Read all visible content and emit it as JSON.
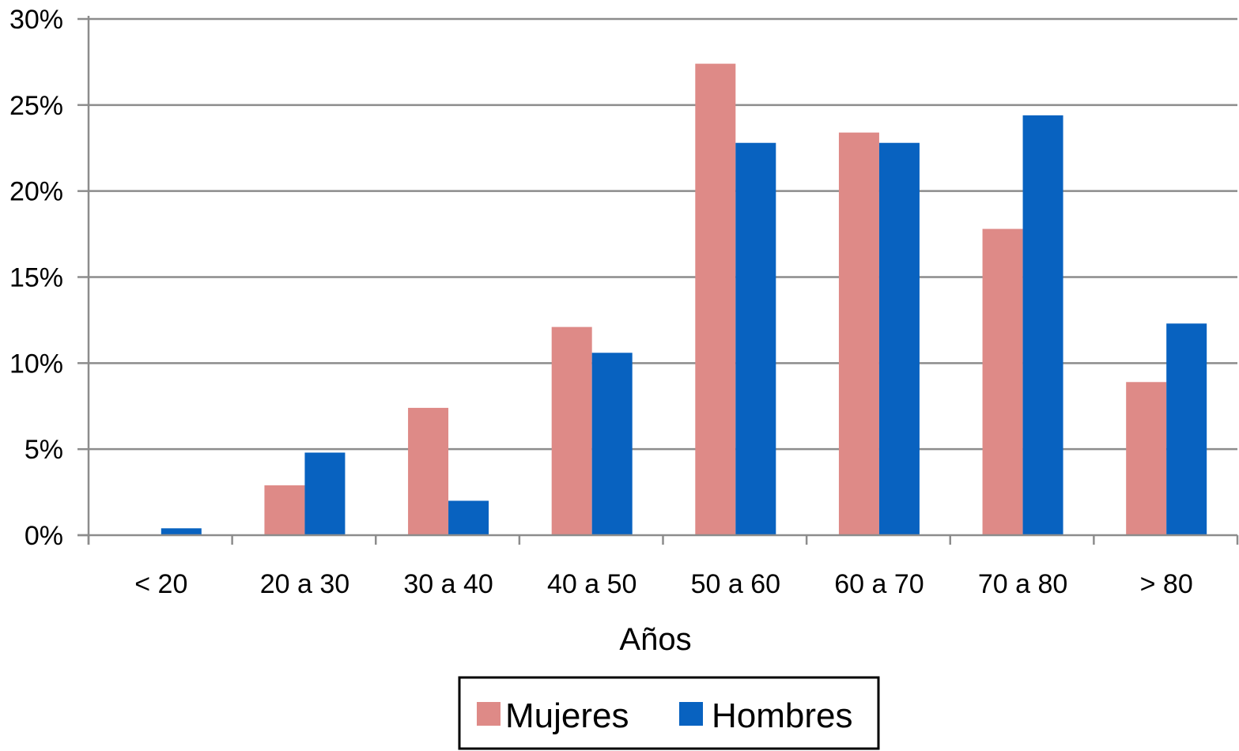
{
  "chart_data": {
    "type": "bar",
    "categories": [
      "< 20",
      "20 a 30",
      "30 a 40",
      "40 a 50",
      "50 a 60",
      "60 a 70",
      "70 a 80",
      "> 80"
    ],
    "series": [
      {
        "name": "Mujeres",
        "color": "#de8a87",
        "values": [
          0,
          2.9,
          7.4,
          12.1,
          27.4,
          23.4,
          17.8,
          8.9
        ]
      },
      {
        "name": "Hombres",
        "color": "#0862c0",
        "values": [
          0.4,
          4.8,
          2.0,
          10.6,
          22.8,
          22.8,
          24.4,
          12.3
        ]
      }
    ],
    "title": "",
    "xlabel": "Años",
    "ylabel": "",
    "ylim": [
      0,
      30
    ],
    "yticks": [
      0,
      5,
      10,
      15,
      20,
      25,
      30
    ],
    "ytick_labels": [
      "0%",
      "5%",
      "10%",
      "15%",
      "20%",
      "25%",
      "30%"
    ],
    "grid": true,
    "legend": "bottom-center",
    "gridline_color": "#8c8c8c",
    "axis_color": "#8c8c8c"
  }
}
